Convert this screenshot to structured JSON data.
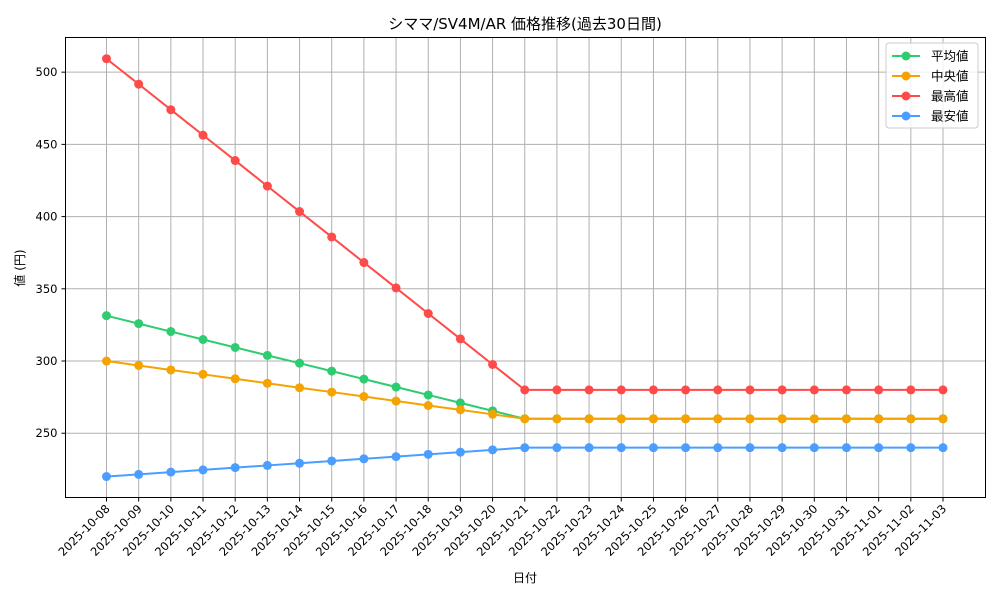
{
  "chart_data": {
    "type": "line",
    "title": "シママ/SV4M/AR 価格推移(過去30日間)",
    "xlabel": "日付",
    "ylabel": "値 (円)",
    "ylim": [
      205.5,
      524
    ],
    "yticks": [
      250,
      300,
      350,
      400,
      450,
      500
    ],
    "grid": true,
    "legend_position": "upper right",
    "x": [
      "2025-10-08",
      "2025-10-09",
      "2025-10-10",
      "2025-10-11",
      "2025-10-12",
      "2025-10-13",
      "2025-10-14",
      "2025-10-15",
      "2025-10-16",
      "2025-10-17",
      "2025-10-18",
      "2025-10-19",
      "2025-10-20",
      "2025-10-21",
      "2025-10-22",
      "2025-10-23",
      "2025-10-24",
      "2025-10-25",
      "2025-10-26",
      "2025-10-27",
      "2025-10-28",
      "2025-10-29",
      "2025-10-30",
      "2025-10-31",
      "2025-11-01",
      "2025-11-02",
      "2025-11-03"
    ],
    "series": [
      {
        "name": "平均値",
        "color": "#2ecc71",
        "values": [
          331.4,
          325.9,
          320.4,
          314.9,
          309.4,
          303.9,
          298.5,
          293.0,
          287.5,
          282.0,
          276.5,
          271.0,
          265.5,
          260,
          260,
          260,
          260,
          260,
          260,
          260,
          260,
          260,
          260,
          260,
          260,
          260,
          260
        ]
      },
      {
        "name": "中央値",
        "color": "#f5a300",
        "values": [
          300.0,
          296.9,
          293.8,
          290.8,
          287.7,
          284.6,
          281.5,
          278.5,
          275.4,
          272.3,
          269.2,
          266.2,
          263.1,
          260,
          260,
          260,
          260,
          260,
          260,
          260,
          260,
          260,
          260,
          260,
          260,
          260,
          260
        ]
      },
      {
        "name": "最高値",
        "color": "#ff4a4a",
        "values": [
          509.3,
          491.7,
          474.0,
          456.4,
          438.8,
          421.1,
          403.5,
          385.9,
          368.2,
          350.6,
          332.9,
          315.3,
          297.6,
          280,
          280,
          280,
          280,
          280,
          280,
          280,
          280,
          280,
          280,
          280,
          280,
          280,
          280
        ]
      },
      {
        "name": "最安値",
        "color": "#4a9eff",
        "values": [
          220.0,
          221.5,
          223.1,
          224.6,
          226.2,
          227.7,
          229.2,
          230.8,
          232.3,
          233.8,
          235.4,
          236.9,
          238.5,
          240,
          240,
          240,
          240,
          240,
          240,
          240,
          240,
          240,
          240,
          240,
          240,
          240,
          240
        ]
      }
    ]
  }
}
